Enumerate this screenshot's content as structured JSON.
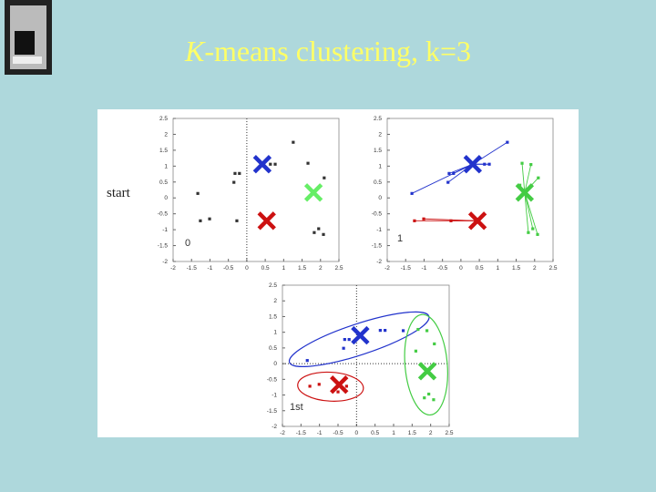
{
  "slide": {
    "title_italic": "K",
    "title_rest": "-means clustering, k=3"
  },
  "chart_data": [
    {
      "type": "scatter",
      "annotation": "0",
      "side_label": "start",
      "xlim": [
        -2,
        2.5
      ],
      "ylim": [
        -2,
        2.5
      ],
      "xticks": [
        -2,
        -1.5,
        -1,
        -0.5,
        0,
        0.5,
        1,
        1.5,
        2,
        2.5
      ],
      "yticks": [
        -2,
        -1.5,
        -1,
        -0.5,
        0,
        0.5,
        1,
        1.5,
        2,
        2.5
      ],
      "zero_lines": [
        "x"
      ],
      "series": [
        {
          "color": "#333333",
          "marker": "square",
          "x": [
            1.26,
            0.64,
            0.77,
            -0.32,
            -0.2,
            -0.35,
            -1.33,
            -1.26,
            -1.01,
            -0.27,
            1.66,
            2.1,
            1.83,
            1.95,
            2.08
          ],
          "values": [
            1.75,
            1.06,
            1.06,
            0.77,
            0.77,
            0.49,
            0.14,
            -0.72,
            -0.66,
            -0.72,
            1.09,
            0.63,
            -1.09,
            -0.97,
            -1.15
          ]
        },
        {
          "color": "#2233cc",
          "marker": "cross",
          "x": [
            0.42
          ],
          "values": [
            1.06
          ]
        },
        {
          "color": "#66ee66",
          "marker": "cross",
          "x": [
            1.81
          ],
          "values": [
            0.17
          ]
        },
        {
          "color": "#cc1111",
          "marker": "cross",
          "x": [
            0.54
          ],
          "values": [
            -0.72
          ]
        }
      ]
    },
    {
      "type": "scatter",
      "annotation": "1",
      "connect": true,
      "xlim": [
        -2,
        2.5
      ],
      "ylim": [
        -2,
        2.5
      ],
      "xticks": [
        -2,
        -1.5,
        -1,
        -0.5,
        0,
        0.5,
        1,
        1.5,
        2,
        2.5
      ],
      "yticks": [
        -2,
        -1.5,
        -1,
        -0.5,
        0,
        0.5,
        1,
        1.5,
        2,
        2.5
      ],
      "zero_lines": [],
      "series": [
        {
          "color": "#2233cc",
          "marker": "square",
          "x": [
            1.26,
            0.64,
            0.77,
            -0.32,
            -0.2,
            -0.35,
            -1.33
          ],
          "values": [
            1.75,
            1.06,
            1.06,
            0.77,
            0.77,
            0.49,
            0.14
          ]
        },
        {
          "color": "#cc1111",
          "marker": "square",
          "x": [
            -1.26,
            -1.01,
            -0.27
          ],
          "values": [
            -0.72,
            -0.66,
            -0.72
          ]
        },
        {
          "color": "#44cc44",
          "marker": "square",
          "x": [
            1.66,
            2.1,
            1.83,
            1.95,
            2.08,
            1.6,
            1.9
          ],
          "values": [
            1.09,
            0.63,
            -1.09,
            -0.97,
            -1.15,
            0.4,
            1.05
          ]
        },
        {
          "color": "#2233cc",
          "marker": "cross",
          "x": [
            0.32
          ],
          "values": [
            1.06
          ]
        },
        {
          "color": "#44cc44",
          "marker": "cross",
          "x": [
            1.73
          ],
          "values": [
            0.17
          ]
        },
        {
          "color": "#cc1111",
          "marker": "cross",
          "x": [
            0.45
          ],
          "values": [
            -0.72
          ]
        }
      ]
    },
    {
      "type": "scatter",
      "annotation": "1st",
      "hull": true,
      "xlim": [
        -2,
        2.5
      ],
      "ylim": [
        -2,
        2.5
      ],
      "xticks": [
        -2,
        -1.5,
        -1,
        -0.5,
        0,
        0.5,
        1,
        1.5,
        2,
        2.5
      ],
      "yticks": [
        -2,
        -1.5,
        -1,
        -0.5,
        0,
        0.5,
        1,
        1.5,
        2,
        2.5
      ],
      "zero_lines": [
        "x",
        "y"
      ],
      "series": [
        {
          "color": "#2233cc",
          "marker": "square",
          "x": [
            1.26,
            0.64,
            0.77,
            -0.32,
            -0.2,
            -0.35,
            -1.33
          ],
          "values": [
            1.05,
            1.06,
            1.06,
            0.77,
            0.77,
            0.49,
            0.1
          ]
        },
        {
          "color": "#cc1111",
          "marker": "square",
          "x": [
            -1.26,
            -1.01,
            -0.27,
            -0.5
          ],
          "values": [
            -0.72,
            -0.66,
            -0.72,
            -0.9
          ]
        },
        {
          "color": "#44cc44",
          "marker": "square",
          "x": [
            1.66,
            2.1,
            1.83,
            1.95,
            2.08,
            1.6,
            1.9
          ],
          "values": [
            1.09,
            0.63,
            -1.09,
            -0.97,
            -1.15,
            0.4,
            1.05
          ]
        },
        {
          "color": "#2233cc",
          "marker": "cross",
          "x": [
            0.1
          ],
          "values": [
            0.9
          ]
        },
        {
          "color": "#44cc44",
          "marker": "cross",
          "x": [
            1.91
          ],
          "values": [
            -0.24
          ]
        },
        {
          "color": "#cc1111",
          "marker": "cross",
          "x": [
            -0.47
          ],
          "values": [
            -0.67
          ]
        }
      ]
    }
  ]
}
